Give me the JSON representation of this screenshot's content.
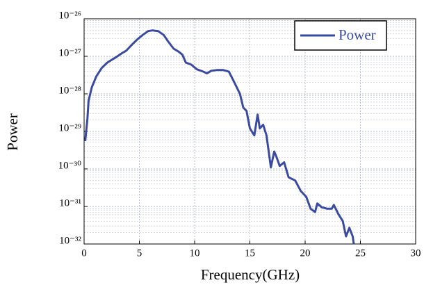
{
  "chart_data": {
    "type": "line",
    "xlabel": "Frequency(GHz)",
    "ylabel": "Power",
    "log_y": true,
    "grid": true,
    "legend": "upper right",
    "xlim": [
      0,
      30
    ],
    "xticks": [
      0,
      5,
      10,
      15,
      20,
      25,
      30
    ],
    "ylim": [
      1e-32,
      1e-26
    ],
    "yticks": [
      {
        "value": 1e-32,
        "label": "10⁻³²"
      },
      {
        "value": 1e-31,
        "label": "10⁻³¹"
      },
      {
        "value": 1e-30,
        "label": "10⁻³⁰"
      },
      {
        "value": 1e-29,
        "label": "10⁻²⁹"
      },
      {
        "value": 1e-28,
        "label": "10⁻²⁸"
      },
      {
        "value": 1e-27,
        "label": "10⁻²⁷"
      },
      {
        "value": 1e-26,
        "label": "10⁻²⁶"
      }
    ],
    "x": [
      0.1,
      0.3,
      0.4,
      0.7,
      1.1,
      1.6,
      2.1,
      2.8,
      3.4,
      3.8,
      4.3,
      4.8,
      5.3,
      5.8,
      6.2,
      6.7,
      7.2,
      7.6,
      8.1,
      8.6,
      8.9,
      9.2,
      9.7,
      10.2,
      10.8,
      11.1,
      11.5,
      12.0,
      12.6,
      13.1,
      13.6,
      14.1,
      14.4,
      14.7,
      15.0,
      15.4,
      15.7,
      15.9,
      16.2,
      16.5,
      16.9,
      17.2,
      17.4,
      17.7,
      18.1,
      18.5,
      19.1,
      19.6,
      20.1,
      20.5,
      20.9,
      21.1,
      21.5,
      22.0,
      22.4,
      22.6,
      23.0,
      23.4,
      23.7,
      24.0,
      24.3,
      24.4
    ],
    "series": [
      {
        "name": "Power",
        "color": "#3a4aa0",
        "values": [
          5.5e-30,
          2.2e-29,
          6.5e-29,
          1.5e-28,
          2.9e-28,
          4.9e-28,
          6.8e-28,
          9.1e-28,
          1.2e-27,
          1.4e-27,
          2e-27,
          2.8e-27,
          3.7e-27,
          4.7e-27,
          4.9e-27,
          4.7e-27,
          3.7e-27,
          2.5e-27,
          1.6e-27,
          1.3e-27,
          1.1e-27,
          6.8e-28,
          6e-28,
          4.5e-28,
          3.9e-28,
          3.5e-28,
          4.1e-28,
          4.3e-28,
          4.3e-28,
          3.9e-28,
          2e-28,
          1e-28,
          4.3e-29,
          3.5e-29,
          1.2e-29,
          7.8e-30,
          2.8e-29,
          1.2e-29,
          1.5e-29,
          7.8e-30,
          1.1e-30,
          2.9e-30,
          2.1e-30,
          1.2e-30,
          1.5e-30,
          6e-31,
          4.9e-31,
          2.6e-31,
          1.8e-31,
          8.7e-32,
          7.1e-32,
          1.2e-31,
          9.5e-32,
          8.7e-32,
          8.7e-32,
          1.1e-31,
          6.3e-32,
          4.1e-32,
          1.6e-32,
          2.7e-32,
          1.6e-32,
          1e-32
        ]
      }
    ]
  }
}
